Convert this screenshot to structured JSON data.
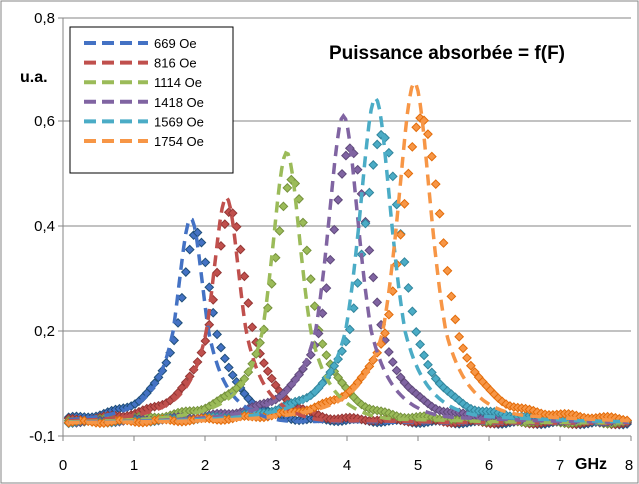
{
  "chart_data": {
    "type": "line",
    "title": "Puissance absorbée = f(F)",
    "xlabel": "GHz",
    "ylabel": "u.a.",
    "xlim": [
      0,
      8
    ],
    "ylim": [
      -0.1,
      0.8
    ],
    "x_ticks": [
      "0",
      "1",
      "2",
      "3",
      "4",
      "5",
      "6",
      "7",
      "8"
    ],
    "y_ticks": [
      "-0,1",
      "0,2",
      "0,4",
      "0,6",
      "0,8"
    ],
    "grid": "horizontal",
    "legend_position": "top-left",
    "series": [
      {
        "name": "669 Oe",
        "color": "#4472C4",
        "marker_color": "#1F4E79",
        "dashed": {
          "center": 1.8,
          "peak": 0.415,
          "width": 0.35
        },
        "markers": {
          "center": 1.88,
          "peak": 0.385,
          "width": 0.43
        }
      },
      {
        "name": "816 Oe",
        "color": "#C0504D",
        "marker_color": "#943634",
        "dashed": {
          "center": 2.3,
          "peak": 0.455,
          "width": 0.36
        },
        "markers": {
          "center": 2.36,
          "peak": 0.425,
          "width": 0.44
        }
      },
      {
        "name": "1114 Oe",
        "color": "#9BBB59",
        "marker_color": "#76923C",
        "dashed": {
          "center": 3.15,
          "peak": 0.54,
          "width": 0.38
        },
        "markers": {
          "center": 3.22,
          "peak": 0.49,
          "width": 0.47
        }
      },
      {
        "name": "1418 Oe",
        "color": "#8064A2",
        "marker_color": "#5F497A",
        "dashed": {
          "center": 3.95,
          "peak": 0.61,
          "width": 0.4
        },
        "markers": {
          "center": 4.05,
          "peak": 0.55,
          "width": 0.49
        }
      },
      {
        "name": "1569 Oe",
        "color": "#4BACC6",
        "marker_color": "#31859C",
        "dashed": {
          "center": 4.4,
          "peak": 0.645,
          "width": 0.41
        },
        "markers": {
          "center": 4.5,
          "peak": 0.575,
          "width": 0.5
        }
      },
      {
        "name": "1754 Oe",
        "color": "#F79646",
        "marker_color": "#E36C09",
        "dashed": {
          "center": 4.95,
          "peak": 0.675,
          "width": 0.42
        },
        "markers": {
          "center": 5.05,
          "peak": 0.61,
          "width": 0.52
        }
      }
    ],
    "baseline": -0.065
  }
}
